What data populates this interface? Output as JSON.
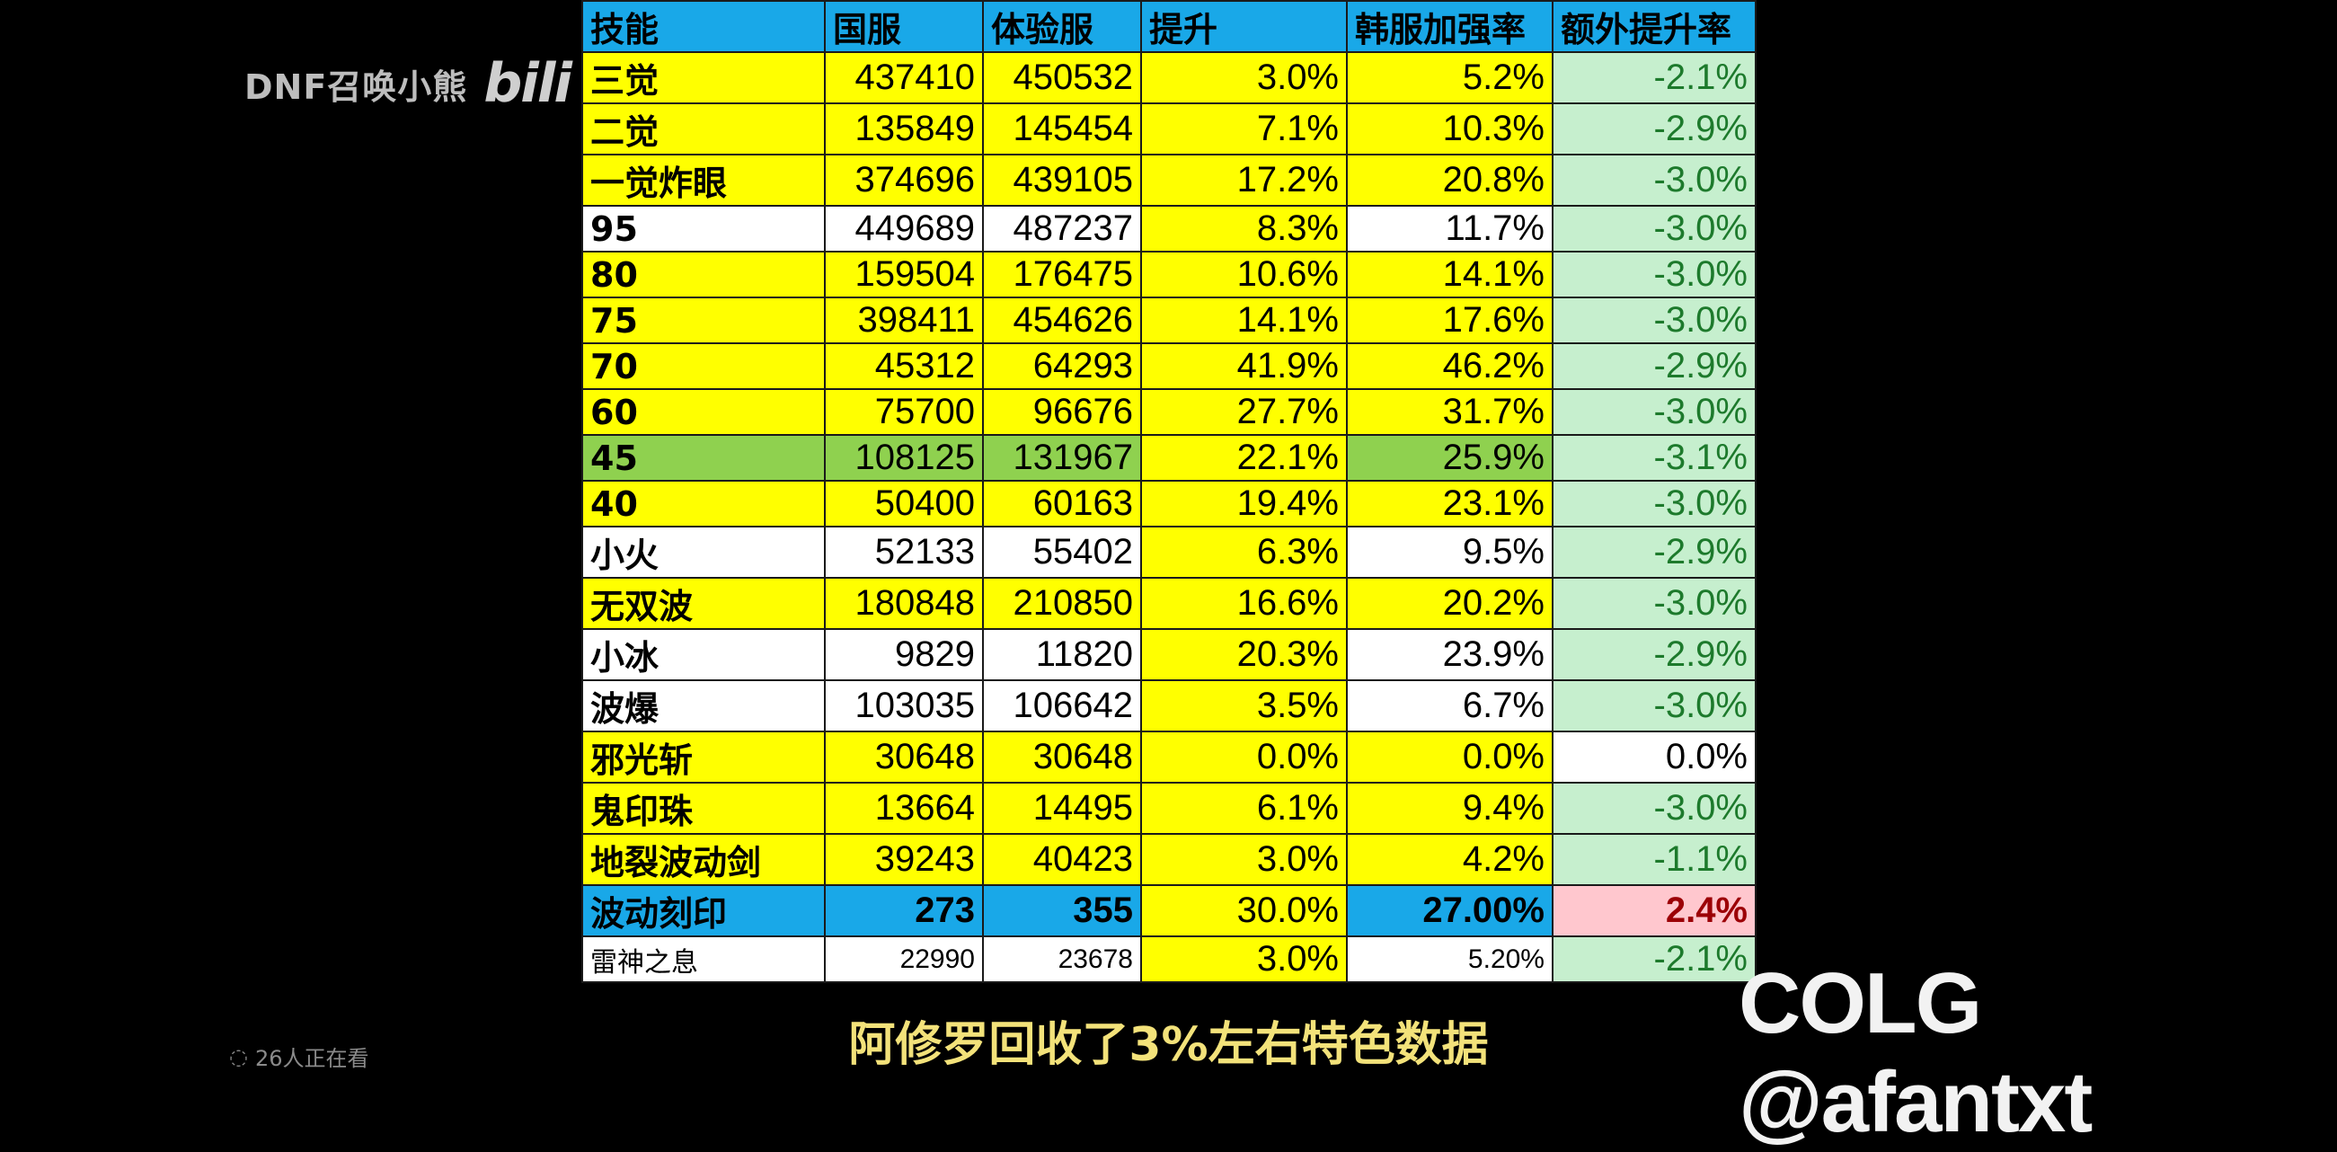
{
  "overlay": {
    "uploader": "DNF召唤小熊",
    "site_logo": "bilibili",
    "viewers": "26人正在看",
    "subtitle": "阿修罗回收了3%左右特色数据",
    "watermark": "COLG @afantxt"
  },
  "table": {
    "headers": [
      "技能",
      "国服",
      "体验服",
      "提升",
      "韩服加强率",
      "额外提升率"
    ],
    "rows": [
      {
        "skill": "三觉",
        "cn": "437410",
        "test": "450532",
        "up": "3.0%",
        "kr": "5.2%",
        "extra": "-2.1%",
        "bg": [
          "y",
          "y",
          "y",
          "y",
          "y",
          "lg"
        ]
      },
      {
        "skill": "二觉",
        "cn": "135849",
        "test": "145454",
        "up": "7.1%",
        "kr": "10.3%",
        "extra": "-2.9%",
        "bg": [
          "y",
          "y",
          "y",
          "y",
          "y",
          "lg"
        ]
      },
      {
        "skill": "一觉炸眼",
        "cn": "374696",
        "test": "439105",
        "up": "17.2%",
        "kr": "20.8%",
        "extra": "-3.0%",
        "bg": [
          "y",
          "y",
          "y",
          "y",
          "y",
          "lg"
        ]
      },
      {
        "skill": "95",
        "cn": "449689",
        "test": "487237",
        "up": "8.3%",
        "kr": "11.7%",
        "extra": "-3.0%",
        "bg": [
          "w",
          "w",
          "w",
          "y",
          "w",
          "lg"
        ]
      },
      {
        "skill": "80",
        "cn": "159504",
        "test": "176475",
        "up": "10.6%",
        "kr": "14.1%",
        "extra": "-3.0%",
        "bg": [
          "y",
          "y",
          "y",
          "y",
          "y",
          "lg"
        ]
      },
      {
        "skill": "75",
        "cn": "398411",
        "test": "454626",
        "up": "14.1%",
        "kr": "17.6%",
        "extra": "-3.0%",
        "bg": [
          "y",
          "y",
          "y",
          "y",
          "y",
          "lg"
        ]
      },
      {
        "skill": "70",
        "cn": "45312",
        "test": "64293",
        "up": "41.9%",
        "kr": "46.2%",
        "extra": "-2.9%",
        "bg": [
          "y",
          "y",
          "y",
          "y",
          "y",
          "lg"
        ]
      },
      {
        "skill": "60",
        "cn": "75700",
        "test": "96676",
        "up": "27.7%",
        "kr": "31.7%",
        "extra": "-3.0%",
        "bg": [
          "y",
          "y",
          "y",
          "y",
          "y",
          "lg"
        ]
      },
      {
        "skill": "45",
        "cn": "108125",
        "test": "131967",
        "up": "22.1%",
        "kr": "25.9%",
        "extra": "-3.1%",
        "bg": [
          "g",
          "g",
          "g",
          "y",
          "g",
          "lg"
        ]
      },
      {
        "skill": "40",
        "cn": "50400",
        "test": "60163",
        "up": "19.4%",
        "kr": "23.1%",
        "extra": "-3.0%",
        "bg": [
          "y",
          "y",
          "y",
          "y",
          "y",
          "lg"
        ]
      },
      {
        "skill": "小火",
        "cn": "52133",
        "test": "55402",
        "up": "6.3%",
        "kr": "9.5%",
        "extra": "-2.9%",
        "bg": [
          "w",
          "w",
          "w",
          "y",
          "w",
          "lg"
        ]
      },
      {
        "skill": "无双波",
        "cn": "180848",
        "test": "210850",
        "up": "16.6%",
        "kr": "20.2%",
        "extra": "-3.0%",
        "bg": [
          "y",
          "y",
          "y",
          "y",
          "y",
          "lg"
        ]
      },
      {
        "skill": "小冰",
        "cn": "9829",
        "test": "11820",
        "up": "20.3%",
        "kr": "23.9%",
        "extra": "-2.9%",
        "bg": [
          "w",
          "w",
          "w",
          "y",
          "w",
          "lg"
        ]
      },
      {
        "skill": "波爆",
        "cn": "103035",
        "test": "106642",
        "up": "3.5%",
        "kr": "6.7%",
        "extra": "-3.0%",
        "bg": [
          "w",
          "w",
          "w",
          "y",
          "w",
          "lg"
        ]
      },
      {
        "skill": "邪光斩",
        "cn": "30648",
        "test": "30648",
        "up": "0.0%",
        "kr": "0.0%",
        "extra": "0.0%",
        "bg": [
          "y",
          "y",
          "y",
          "y",
          "y",
          "w"
        ]
      },
      {
        "skill": "鬼印珠",
        "cn": "13664",
        "test": "14495",
        "up": "6.1%",
        "kr": "9.4%",
        "extra": "-3.0%",
        "bg": [
          "y",
          "y",
          "y",
          "y",
          "y",
          "lg"
        ]
      },
      {
        "skill": "地裂波动剑",
        "cn": "39243",
        "test": "40423",
        "up": "3.0%",
        "kr": "4.2%",
        "extra": "-1.1%",
        "bg": [
          "y",
          "y",
          "y",
          "y",
          "y",
          "lg"
        ]
      },
      {
        "skill": "波动刻印",
        "cn": "273",
        "test": "355",
        "up": "30.0%",
        "kr": "27.00%",
        "extra": "2.4%",
        "bg": [
          "b",
          "b",
          "b",
          "y",
          "b",
          "pk"
        ]
      },
      {
        "skill": "雷神之息",
        "cn": "22990",
        "test": "23678",
        "up": "3.0%",
        "kr": "5.20%",
        "extra": "-2.1%",
        "bg": [
          "w",
          "w",
          "w",
          "y",
          "w",
          "lg"
        ]
      }
    ]
  }
}
